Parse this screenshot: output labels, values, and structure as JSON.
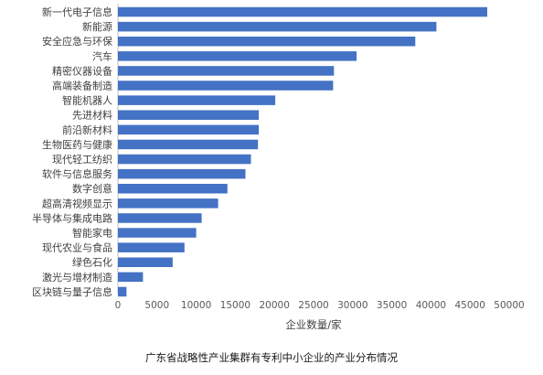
{
  "chart_data": {
    "type": "bar",
    "orientation": "horizontal",
    "categories": [
      "新一代电子信息",
      "新能源",
      "安全应急与环保",
      "汽车",
      "精密仪器设备",
      "高端装备制造",
      "智能机器人",
      "先进材料",
      "前沿新材料",
      "生物医药与健康",
      "现代轻工纺织",
      "软件与信息服务",
      "数字创意",
      "超高清视频显示",
      "半导体与集成电路",
      "智能家电",
      "现代农业与食品",
      "绿色石化",
      "激光与增材制造",
      "区块链与量子信息"
    ],
    "values": [
      47200,
      40700,
      38000,
      30500,
      27600,
      27500,
      20100,
      18000,
      18000,
      17900,
      17000,
      16300,
      14000,
      12800,
      10700,
      10000,
      8500,
      7000,
      3200,
      1100
    ],
    "xlabel": "企业数量/家",
    "xlim": [
      0,
      50000
    ],
    "xticks": [
      0,
      5000,
      10000,
      15000,
      20000,
      25000,
      30000,
      35000,
      40000,
      45000,
      50000
    ],
    "bar_color": "#4472c4",
    "grid": false
  },
  "caption": "广东省战略性产业集群有专利中小企业的产业分布情况"
}
